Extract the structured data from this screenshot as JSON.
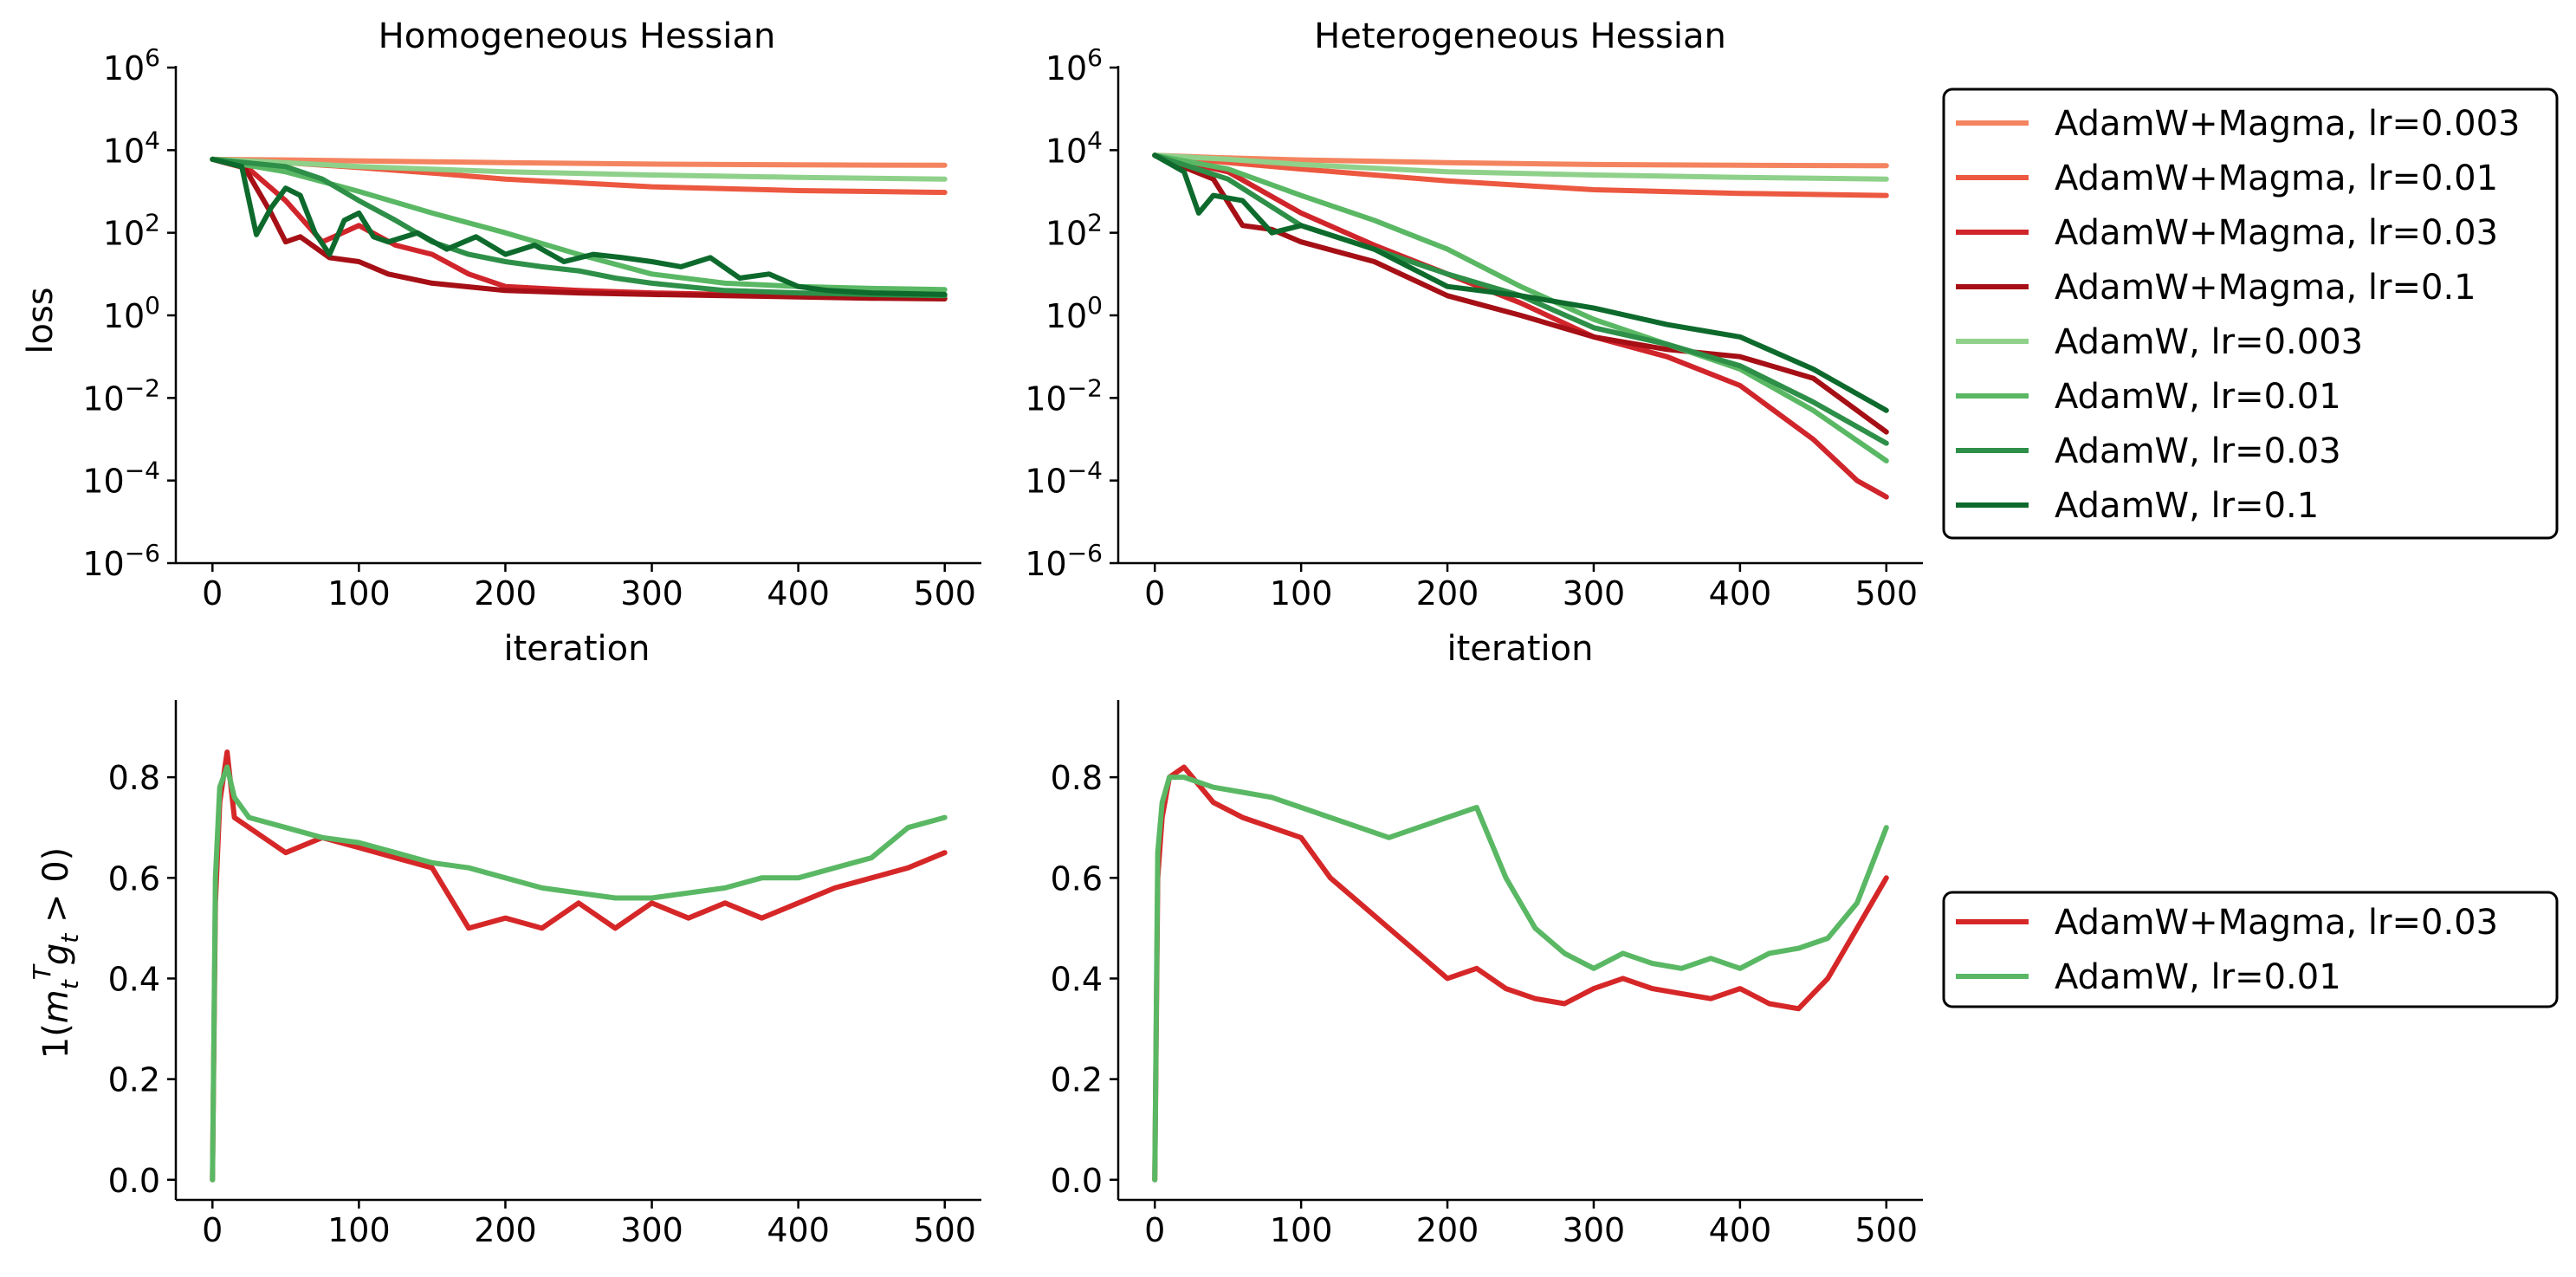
{
  "chart_data": [
    {
      "type": "line",
      "id": "homogeneous-loss",
      "title": "Homogeneous Hessian",
      "xlabel": "iteration",
      "ylabel": "loss",
      "yscale": "log",
      "xlim": [
        -25,
        525
      ],
      "ylim": [
        1e-06,
        1000000.0
      ],
      "xticks": [
        "0",
        "100",
        "200",
        "300",
        "400",
        "500"
      ],
      "yticks": [
        "10^{-6}",
        "10^{-4}",
        "10^{-2}",
        "10^{0}",
        "10^{2}",
        "10^{4}",
        "10^{6}"
      ],
      "series": [
        {
          "name": "AdamW+Magma, lr=0.003",
          "color": "#f4845f",
          "x": [
            0,
            50,
            100,
            200,
            300,
            400,
            500
          ],
          "y": [
            6000,
            5800,
            5500,
            5000,
            4600,
            4400,
            4300
          ]
        },
        {
          "name": "AdamW+Magma, lr=0.01",
          "color": "#ec5840",
          "x": [
            0,
            50,
            100,
            150,
            200,
            300,
            400,
            500
          ],
          "y": [
            6000,
            5000,
            3800,
            2800,
            2000,
            1300,
            1050,
            950
          ]
        },
        {
          "name": "AdamW+Magma, lr=0.03",
          "color": "#d0252b",
          "x": [
            0,
            25,
            50,
            75,
            100,
            125,
            150,
            175,
            200,
            250,
            300,
            350,
            400,
            450,
            500
          ],
          "y": [
            6000,
            3500,
            600,
            60,
            150,
            50,
            30,
            10,
            5,
            4,
            3.5,
            3.2,
            3,
            2.8,
            2.6
          ]
        },
        {
          "name": "AdamW+Magma, lr=0.1",
          "color": "#a50f15",
          "x": [
            0,
            20,
            40,
            50,
            60,
            80,
            100,
            120,
            150,
            200,
            250,
            300,
            350,
            400,
            450,
            500
          ],
          "y": [
            6000,
            5000,
            300,
            60,
            80,
            25,
            20,
            10,
            6,
            4,
            3.5,
            3.2,
            3,
            2.8,
            2.6,
            2.5
          ]
        },
        {
          "name": "AdamW, lr=0.003",
          "color": "#8fd18a",
          "x": [
            0,
            50,
            100,
            200,
            300,
            400,
            500
          ],
          "y": [
            6000,
            5000,
            4000,
            3000,
            2500,
            2200,
            2000
          ]
        },
        {
          "name": "AdamW, lr=0.01",
          "color": "#5ab864",
          "x": [
            0,
            50,
            100,
            150,
            200,
            250,
            300,
            350,
            400,
            450,
            500
          ],
          "y": [
            6000,
            3000,
            1000,
            300,
            100,
            30,
            10,
            6,
            5,
            4.5,
            4.2
          ]
        },
        {
          "name": "AdamW, lr=0.03",
          "color": "#2e8f48",
          "x": [
            0,
            50,
            75,
            100,
            125,
            150,
            175,
            200,
            225,
            250,
            275,
            300,
            350,
            400,
            450,
            500
          ],
          "y": [
            6000,
            4000,
            2000,
            600,
            200,
            60,
            30,
            20,
            15,
            12,
            8,
            6,
            4,
            3.5,
            3.2,
            3
          ]
        },
        {
          "name": "AdamW, lr=0.1",
          "color": "#0d6a2c",
          "x": [
            0,
            20,
            30,
            40,
            50,
            60,
            70,
            80,
            90,
            100,
            110,
            120,
            140,
            160,
            180,
            200,
            220,
            240,
            260,
            280,
            300,
            320,
            340,
            360,
            380,
            400,
            420,
            450,
            500
          ],
          "y": [
            6000,
            4000,
            90,
            400,
            1200,
            800,
            100,
            30,
            200,
            300,
            80,
            60,
            100,
            40,
            80,
            30,
            50,
            20,
            30,
            25,
            20,
            15,
            25,
            8,
            10,
            5,
            4,
            3.5,
            3.2
          ]
        }
      ]
    },
    {
      "type": "line",
      "id": "heterogeneous-loss",
      "title": "Heterogeneous Hessian",
      "xlabel": "iteration",
      "ylabel": "",
      "yscale": "log",
      "xlim": [
        -25,
        525
      ],
      "ylim": [
        1e-06,
        1000000.0
      ],
      "xticks": [
        "0",
        "100",
        "200",
        "300",
        "400",
        "500"
      ],
      "yticks": [
        "10^{-6}",
        "10^{-4}",
        "10^{-2}",
        "10^{0}",
        "10^{2}",
        "10^{4}",
        "10^{6}"
      ],
      "series": [
        {
          "name": "AdamW+Magma, lr=0.003",
          "color": "#f4845f",
          "x": [
            0,
            50,
            100,
            200,
            300,
            400,
            500
          ],
          "y": [
            7500,
            6500,
            5800,
            5000,
            4500,
            4300,
            4200
          ]
        },
        {
          "name": "AdamW+Magma, lr=0.01",
          "color": "#ec5840",
          "x": [
            0,
            50,
            100,
            150,
            200,
            300,
            400,
            500
          ],
          "y": [
            7500,
            5000,
            3500,
            2500,
            1800,
            1100,
            900,
            800
          ]
        },
        {
          "name": "AdamW+Magma, lr=0.03",
          "color": "#d0252b",
          "x": [
            0,
            50,
            100,
            150,
            200,
            250,
            300,
            350,
            400,
            450,
            480,
            500
          ],
          "y": [
            7500,
            3000,
            300,
            50,
            10,
            2,
            0.3,
            0.1,
            0.02,
            0.001,
            0.0001,
            4e-05
          ]
        },
        {
          "name": "AdamW+Magma, lr=0.1",
          "color": "#a50f15",
          "x": [
            0,
            40,
            60,
            80,
            100,
            150,
            200,
            250,
            300,
            350,
            400,
            450,
            500
          ],
          "y": [
            7500,
            2000,
            150,
            120,
            60,
            20,
            3,
            1,
            0.3,
            0.15,
            0.1,
            0.03,
            0.0015
          ]
        },
        {
          "name": "AdamW, lr=0.003",
          "color": "#8fd18a",
          "x": [
            0,
            50,
            100,
            200,
            300,
            400,
            500
          ],
          "y": [
            7500,
            6000,
            4500,
            3000,
            2500,
            2200,
            2000
          ]
        },
        {
          "name": "AdamW, lr=0.01",
          "color": "#5ab864",
          "x": [
            0,
            50,
            100,
            150,
            200,
            250,
            300,
            350,
            400,
            450,
            500
          ],
          "y": [
            7500,
            3500,
            800,
            200,
            40,
            5,
            0.8,
            0.2,
            0.05,
            0.005,
            0.0003
          ]
        },
        {
          "name": "AdamW, lr=0.03",
          "color": "#2e8f48",
          "x": [
            0,
            50,
            100,
            150,
            200,
            250,
            300,
            350,
            400,
            450,
            500
          ],
          "y": [
            7500,
            2000,
            150,
            40,
            10,
            3,
            0.5,
            0.2,
            0.06,
            0.008,
            0.0008
          ]
        },
        {
          "name": "AdamW, lr=0.1",
          "color": "#0d6a2c",
          "x": [
            0,
            20,
            30,
            40,
            60,
            80,
            100,
            150,
            200,
            250,
            300,
            350,
            400,
            450,
            500
          ],
          "y": [
            7500,
            3000,
            300,
            800,
            600,
            100,
            150,
            40,
            5,
            3,
            1.5,
            0.6,
            0.3,
            0.05,
            0.005
          ]
        }
      ]
    },
    {
      "type": "line",
      "id": "homogeneous-alignment",
      "title": "",
      "xlabel": "",
      "ylabel": "1(m_t^T g_t > 0)",
      "yscale": "linear",
      "xlim": [
        -25,
        525
      ],
      "ylim": [
        -0.04,
        0.95
      ],
      "xticks": [
        "0",
        "100",
        "200",
        "300",
        "400",
        "500"
      ],
      "yticks": [
        "0.0",
        "0.2",
        "0.4",
        "0.6",
        "0.8"
      ],
      "series": [
        {
          "name": "AdamW+Magma, lr=0.03",
          "color": "#d62728",
          "x": [
            0,
            2,
            5,
            10,
            15,
            25,
            50,
            75,
            100,
            125,
            150,
            175,
            200,
            225,
            250,
            275,
            300,
            325,
            350,
            375,
            400,
            425,
            450,
            475,
            500
          ],
          "y": [
            0.0,
            0.55,
            0.75,
            0.85,
            0.72,
            0.7,
            0.65,
            0.68,
            0.66,
            0.64,
            0.62,
            0.5,
            0.52,
            0.5,
            0.55,
            0.5,
            0.55,
            0.52,
            0.55,
            0.52,
            0.55,
            0.58,
            0.6,
            0.62,
            0.65
          ]
        },
        {
          "name": "AdamW, lr=0.01",
          "color": "#5ab864",
          "x": [
            0,
            2,
            5,
            10,
            15,
            25,
            50,
            75,
            100,
            125,
            150,
            175,
            200,
            225,
            250,
            275,
            300,
            325,
            350,
            375,
            400,
            425,
            450,
            475,
            500
          ],
          "y": [
            0.0,
            0.6,
            0.78,
            0.82,
            0.76,
            0.72,
            0.7,
            0.68,
            0.67,
            0.65,
            0.63,
            0.62,
            0.6,
            0.58,
            0.57,
            0.56,
            0.56,
            0.57,
            0.58,
            0.6,
            0.6,
            0.62,
            0.64,
            0.7,
            0.72
          ]
        }
      ]
    },
    {
      "type": "line",
      "id": "heterogeneous-alignment",
      "title": "",
      "xlabel": "",
      "ylabel": "",
      "yscale": "linear",
      "xlim": [
        -25,
        525
      ],
      "ylim": [
        -0.04,
        0.95
      ],
      "xticks": [
        "0",
        "100",
        "200",
        "300",
        "400",
        "500"
      ],
      "yticks": [
        "0.0",
        "0.2",
        "0.4",
        "0.6",
        "0.8"
      ],
      "series": [
        {
          "name": "AdamW+Magma, lr=0.03",
          "color": "#d62728",
          "x": [
            0,
            2,
            5,
            10,
            20,
            40,
            60,
            80,
            100,
            120,
            140,
            160,
            180,
            200,
            220,
            240,
            260,
            280,
            300,
            320,
            340,
            360,
            380,
            400,
            420,
            440,
            460,
            480,
            500
          ],
          "y": [
            0.0,
            0.6,
            0.72,
            0.8,
            0.82,
            0.75,
            0.72,
            0.7,
            0.68,
            0.6,
            0.55,
            0.5,
            0.45,
            0.4,
            0.42,
            0.38,
            0.36,
            0.35,
            0.38,
            0.4,
            0.38,
            0.37,
            0.36,
            0.38,
            0.35,
            0.34,
            0.4,
            0.5,
            0.6
          ]
        },
        {
          "name": "AdamW, lr=0.01",
          "color": "#5ab864",
          "x": [
            0,
            2,
            5,
            10,
            20,
            40,
            60,
            80,
            100,
            120,
            140,
            160,
            180,
            200,
            220,
            240,
            260,
            280,
            300,
            320,
            340,
            360,
            380,
            400,
            420,
            440,
            460,
            480,
            500
          ],
          "y": [
            0.0,
            0.65,
            0.75,
            0.8,
            0.8,
            0.78,
            0.77,
            0.76,
            0.74,
            0.72,
            0.7,
            0.68,
            0.7,
            0.72,
            0.74,
            0.6,
            0.5,
            0.45,
            0.42,
            0.45,
            0.43,
            0.42,
            0.44,
            0.42,
            0.45,
            0.46,
            0.48,
            0.55,
            0.7
          ]
        }
      ]
    }
  ],
  "legends": {
    "top": [
      {
        "label": "AdamW+Magma, lr=0.003",
        "color": "#f4845f"
      },
      {
        "label": "AdamW+Magma, lr=0.01",
        "color": "#ec5840"
      },
      {
        "label": "AdamW+Magma, lr=0.03",
        "color": "#d0252b"
      },
      {
        "label": "AdamW+Magma, lr=0.1",
        "color": "#a50f15"
      },
      {
        "label": "AdamW, lr=0.003",
        "color": "#8fd18a"
      },
      {
        "label": "AdamW, lr=0.01",
        "color": "#5ab864"
      },
      {
        "label": "AdamW, lr=0.03",
        "color": "#2e8f48"
      },
      {
        "label": "AdamW, lr=0.1",
        "color": "#0d6a2c"
      }
    ],
    "bottom": [
      {
        "label": "AdamW+Magma, lr=0.03",
        "color": "#d62728"
      },
      {
        "label": "AdamW, lr=0.01",
        "color": "#5ab864"
      }
    ]
  }
}
